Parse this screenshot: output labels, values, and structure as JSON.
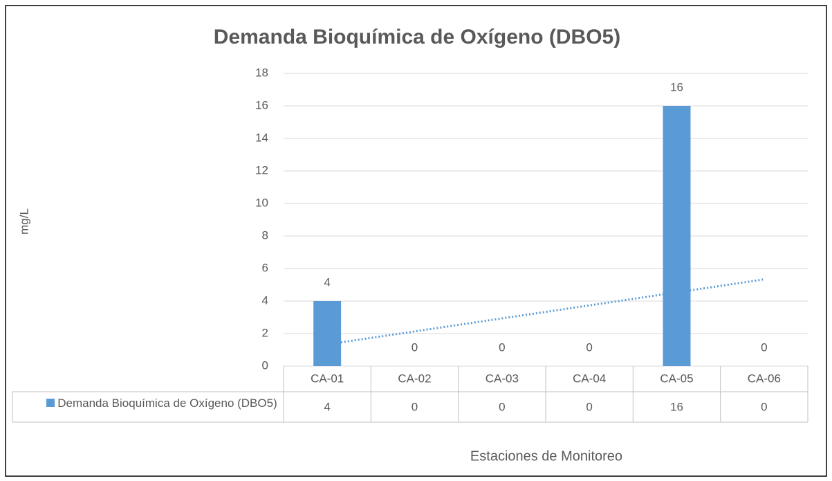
{
  "chart_data": {
    "type": "bar",
    "title": "Demanda Bioquímica de Oxígeno (DBO5)",
    "y_label": "mg/L",
    "x_label": "Estaciones de Monitoreo",
    "categories": [
      "CA-01",
      "CA-02",
      "CA-03",
      "CA-04",
      "CA-05",
      "CA-06"
    ],
    "series": [
      {
        "name": "Demanda Bioquímica de Oxígeno (DBO5)",
        "color": "#5b9bd5",
        "values": [
          4,
          0,
          0,
          0,
          16,
          0
        ]
      }
    ],
    "ylim": [
      0,
      18
    ],
    "yticks": [
      0,
      2,
      4,
      6,
      8,
      10,
      12,
      14,
      16,
      18
    ],
    "grid": true,
    "trendline": "linear",
    "data_table": true
  }
}
